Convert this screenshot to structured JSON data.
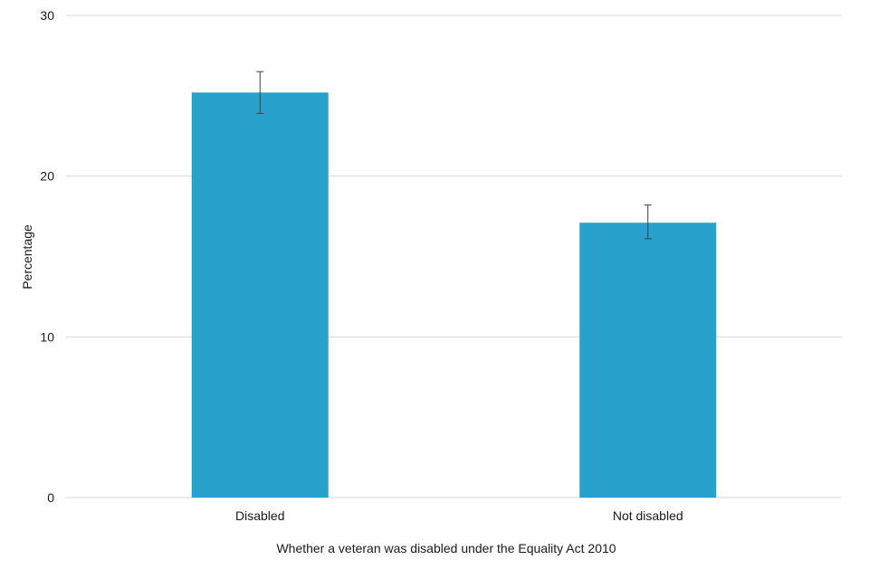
{
  "chart_data": {
    "type": "bar",
    "title": "",
    "categories": [
      "Disabled",
      "Not disabled"
    ],
    "values": [
      25.2,
      17.1
    ],
    "error_low": [
      23.9,
      16.1
    ],
    "error_high": [
      26.5,
      18.2
    ],
    "xlabel": "Whether a veteran was disabled under the Equality Act 2010",
    "ylabel": "Percentage",
    "ylim": [
      0,
      30
    ],
    "yticks": [
      "0",
      "10",
      "20",
      "30"
    ],
    "ytick_values": [
      0,
      10,
      20,
      30
    ],
    "grid": true,
    "bar_color": "#28a1cc",
    "grid_color": "#d9d9d9",
    "error_color": "#404040"
  }
}
